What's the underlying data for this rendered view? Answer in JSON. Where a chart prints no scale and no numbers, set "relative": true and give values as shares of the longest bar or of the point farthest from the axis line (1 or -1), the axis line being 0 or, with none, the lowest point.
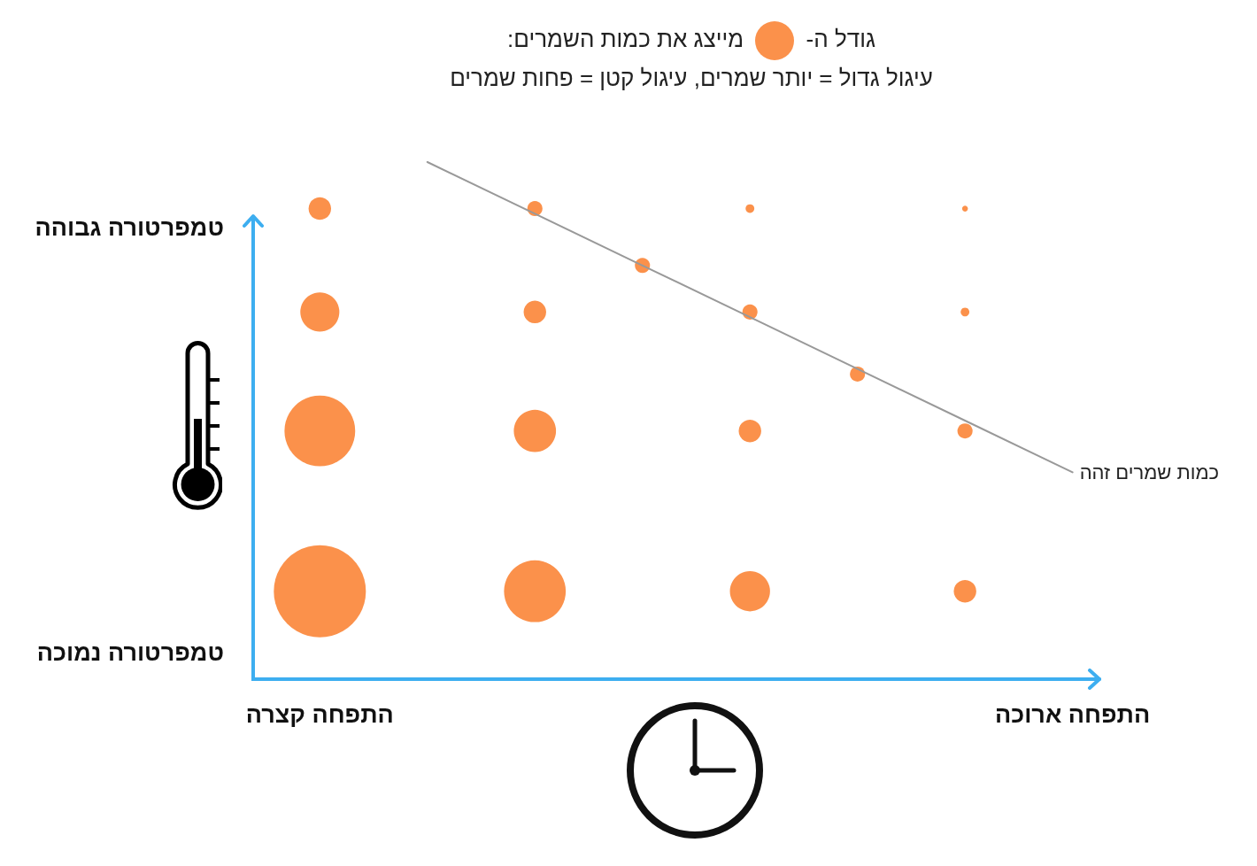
{
  "chart_data": {
    "type": "bubble",
    "title": "גודל ה- מייצג את כמות השמרים:",
    "subtitle": "עיגול גדול = יותר שמרים, עיגול קטן = פחות שמרים",
    "annotations": [
      "טמפרטורה גבוהה",
      "טמפרטורה נמוכה"
    ],
    "categories": [
      "התפחה קצרה",
      null,
      null,
      null,
      null,
      null,
      null,
      "התפחה ארוכה"
    ],
    "relative": true,
    "grid": false,
    "series": [
      {
        "color": "#fb914b",
        "marker": "circle",
        "values": [
          0.91,
          null,
          0.91,
          null,
          0.91,
          null,
          0.91,
          null
        ],
        "sizes": [
          0.06,
          null,
          0.027,
          null,
          0.009,
          null,
          0.004,
          null
        ]
      },
      {
        "color": "#fb914b",
        "marker": "circle",
        "values": [
          0.71,
          null,
          0.71,
          null,
          0.71,
          null,
          0.71,
          null
        ],
        "sizes": [
          0.18,
          null,
          0.06,
          null,
          0.027,
          null,
          0.009,
          null
        ]
      },
      {
        "color": "#fb914b",
        "marker": "circle",
        "values": [
          0.48,
          null,
          0.48,
          null,
          0.48,
          null,
          0.48,
          null
        ],
        "sizes": [
          0.59,
          null,
          0.21,
          null,
          0.06,
          null,
          0.027,
          null
        ]
      },
      {
        "color": "#fb914b",
        "marker": "circle",
        "values": [
          0.17,
          null,
          0.17,
          null,
          0.17,
          null,
          0.17,
          null
        ],
        "sizes": [
          1,
          null,
          0.45,
          null,
          0.19,
          null,
          0.06,
          null
        ]
      },
      {
        "color": "#fb914b",
        "marker": "circle",
        "values": [
          null,
          null,
          null,
          0.8,
          null,
          0.59,
          null,
          null
        ],
        "sizes": [
          null,
          null,
          null,
          0.027,
          null,
          0.027,
          null,
          null
        ]
      },
      {
        "type": "line",
        "name": "כמות שמרים זהה",
        "color": "#999999",
        "marker": "none",
        "values": [
          null,
          1,
          0.9,
          0.8,
          0.7,
          0.6,
          0.5,
          0.4
        ]
      }
    ]
  }
}
